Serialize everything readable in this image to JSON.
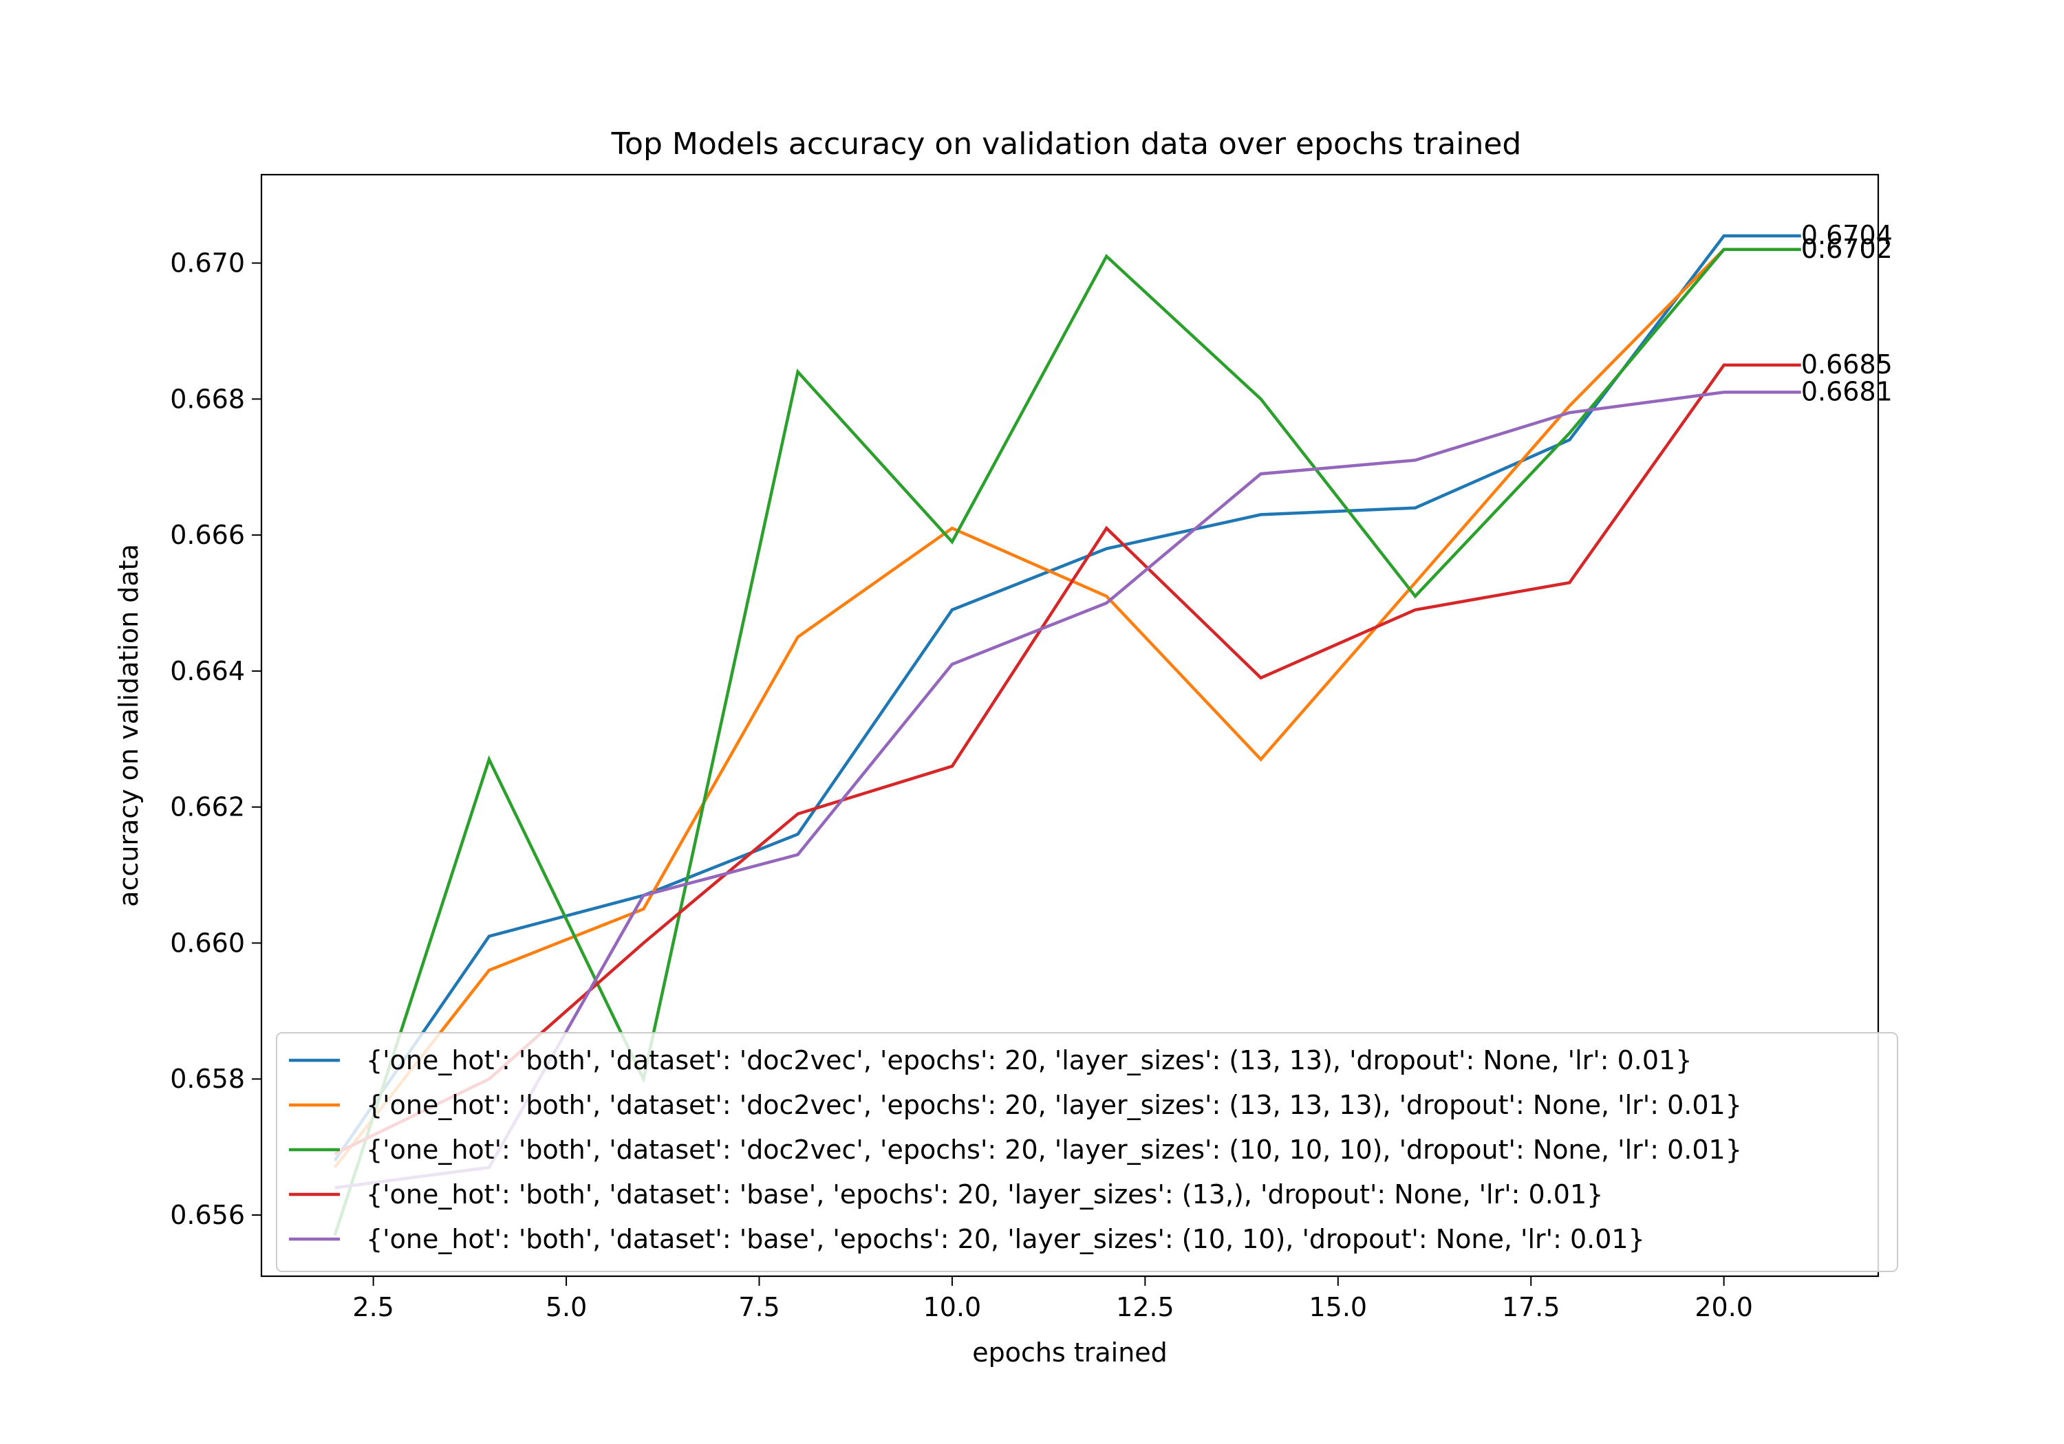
{
  "chart_data": {
    "type": "line",
    "title": "Top Models accuracy on validation data over epochs trained",
    "xlabel": "epochs trained",
    "ylabel": "accuracy on validation data",
    "xlim": [
      1.05,
      22.0
    ],
    "ylim": [
      0.6551,
      0.6713
    ],
    "xticks": [
      2.5,
      5.0,
      7.5,
      10.0,
      12.5,
      15.0,
      17.5,
      20.0
    ],
    "xtick_labels": [
      "2.5",
      "5.0",
      "7.5",
      "10.0",
      "12.5",
      "15.0",
      "17.5",
      "20.0"
    ],
    "yticks": [
      0.656,
      0.658,
      0.66,
      0.662,
      0.664,
      0.666,
      0.668,
      0.67
    ],
    "ytick_labels": [
      "0.656",
      "0.658",
      "0.660",
      "0.662",
      "0.664",
      "0.666",
      "0.668",
      "0.670"
    ],
    "grid": false,
    "legend_position": "lower-right",
    "x": [
      2,
      4,
      6,
      8,
      10,
      12,
      14,
      16,
      18,
      20,
      21
    ],
    "series": [
      {
        "name": "{'one_hot': 'both', 'dataset': 'doc2vec', 'epochs': 20, 'layer_sizes': (13, 13), 'dropout': None, 'lr': 0.01}",
        "color": "#1f77b4",
        "values": [
          0.6568,
          0.6601,
          0.6607,
          0.6616,
          0.6649,
          0.6658,
          0.6663,
          0.6664,
          0.6674,
          0.6704,
          0.6704
        ],
        "end_label": "0.6704"
      },
      {
        "name": "{'one_hot': 'both', 'dataset': 'doc2vec', 'epochs': 20, 'layer_sizes': (13, 13, 13), 'dropout': None, 'lr': 0.01}",
        "color": "#ff7f0e",
        "values": [
          0.6567,
          0.6596,
          0.6605,
          0.6645,
          0.6661,
          0.6651,
          0.6627,
          0.6653,
          0.6679,
          0.6702,
          0.6702
        ],
        "end_label": "0.6702"
      },
      {
        "name": "{'one_hot': 'both', 'dataset': 'doc2vec', 'epochs': 20, 'layer_sizes': (10, 10, 10), 'dropout': None, 'lr': 0.01}",
        "color": "#2ca02c",
        "values": [
          0.6557,
          0.6627,
          0.658,
          0.6684,
          0.6659,
          0.6701,
          0.668,
          0.6651,
          0.6675,
          0.6702,
          0.6702
        ],
        "end_label": "0.6702"
      },
      {
        "name": "{'one_hot': 'both', 'dataset': 'base', 'epochs': 20, 'layer_sizes': (13,), 'dropout': None, 'lr': 0.01}",
        "color": "#d62728",
        "values": [
          0.6569,
          0.658,
          0.66,
          0.6619,
          0.6626,
          0.6661,
          0.6639,
          0.6649,
          0.6653,
          0.6685,
          0.6685
        ],
        "end_label": "0.6685"
      },
      {
        "name": "{'one_hot': 'both', 'dataset': 'base', 'epochs': 20, 'layer_sizes': (10, 10), 'dropout': None, 'lr': 0.01}",
        "color": "#9467bd",
        "values": [
          0.6564,
          0.6567,
          0.6607,
          0.6613,
          0.6641,
          0.665,
          0.6669,
          0.6671,
          0.6678,
          0.6681,
          0.6681
        ],
        "end_label": "0.6681"
      }
    ]
  }
}
